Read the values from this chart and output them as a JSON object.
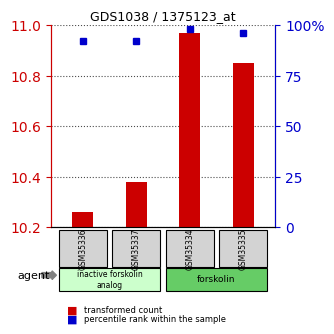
{
  "title": "GDS1038 / 1375123_at",
  "samples": [
    "GSM35336",
    "GSM35337",
    "GSM35334",
    "GSM35335"
  ],
  "bar_values": [
    10.26,
    10.38,
    10.97,
    10.85
  ],
  "dot_values": [
    92,
    92,
    98,
    96
  ],
  "ylim_left": [
    10.2,
    11.0
  ],
  "ylim_right": [
    0,
    100
  ],
  "yticks_left": [
    10.2,
    10.4,
    10.6,
    10.8,
    11.0
  ],
  "yticks_right": [
    0,
    25,
    50,
    75,
    100
  ],
  "bar_color": "#cc0000",
  "dot_color": "#0000cc",
  "bar_bottom": 10.2,
  "groups": [
    {
      "label": "inactive forskolin\nanalog",
      "color": "#ccffcc",
      "samples": [
        0,
        1
      ]
    },
    {
      "label": "forskolin",
      "color": "#66cc66",
      "samples": [
        2,
        3
      ]
    }
  ],
  "agent_label": "agent",
  "legend_bar_label": "transformed count",
  "legend_dot_label": "percentile rank within the sample",
  "background_color": "#ffffff",
  "plot_bg": "#ffffff",
  "title_color": "#000000",
  "left_axis_color": "#cc0000",
  "right_axis_color": "#0000cc"
}
